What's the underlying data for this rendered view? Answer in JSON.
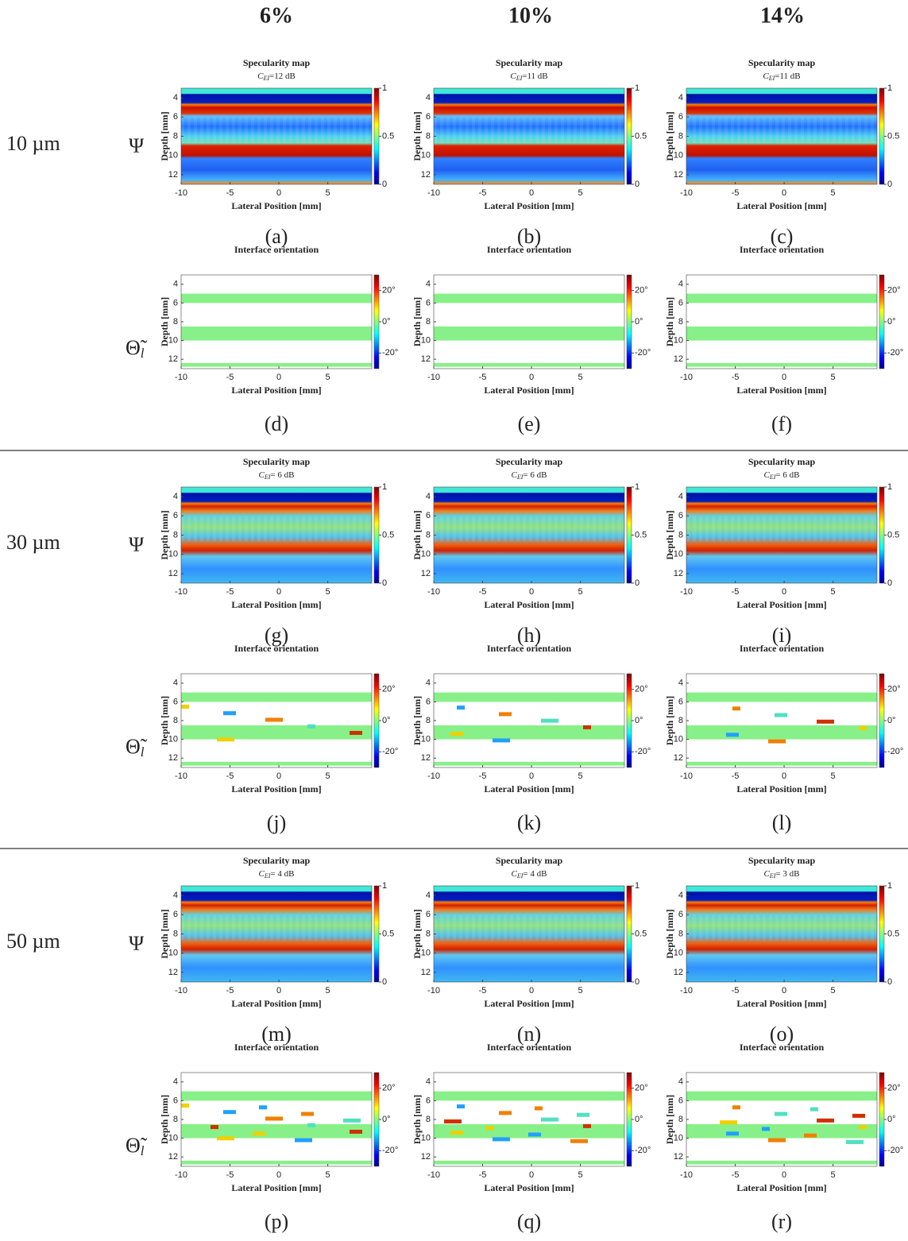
{
  "columns": [
    "6%",
    "10%",
    "14%"
  ],
  "row_symbols": {
    "specularity": "Ψ",
    "orientation": {
      "symbol": "Θ̃",
      "subscript": "l"
    }
  },
  "axes": {
    "x_label": "Lateral Position [mm]",
    "y_label": "Depth [mm]",
    "xlim": [
      -10,
      9.5
    ],
    "xticks": [
      -10,
      -5,
      0,
      5
    ],
    "ylim": [
      3,
      13
    ],
    "yticks": [
      4,
      6,
      8,
      10,
      12
    ]
  },
  "specularity": {
    "title": "Specularity map",
    "metric_symbol": "C",
    "metric_subscript": "EI",
    "colorbar_lim": [
      0,
      1
    ],
    "colorbar_ticks": [
      0,
      0.5,
      1
    ]
  },
  "orientation": {
    "title": "Interface orientation",
    "colorbar_lim": [
      -30,
      30
    ],
    "colorbar_ticks": [
      {
        "value": 20,
        "label": "20°"
      },
      {
        "value": 0,
        "label": "0°"
      },
      {
        "value": -20,
        "label": "-20°"
      }
    ]
  },
  "rows": [
    {
      "label": "10 µm",
      "specularity": [
        {
          "metric": "=12 dB",
          "caption": "(a)"
        },
        {
          "metric": "=11 dB",
          "caption": "(b)"
        },
        {
          "metric": "=11 dB",
          "caption": "(c)"
        }
      ],
      "orientation": [
        {
          "caption": "(d)"
        },
        {
          "caption": "(e)"
        },
        {
          "caption": "(f)"
        }
      ]
    },
    {
      "label": "30 µm",
      "specularity": [
        {
          "metric": "= 6 dB",
          "caption": "(g)"
        },
        {
          "metric": "= 6 dB",
          "caption": "(h)"
        },
        {
          "metric": "= 6 dB",
          "caption": "(i)"
        }
      ],
      "orientation": [
        {
          "caption": "(j)"
        },
        {
          "caption": "(k)"
        },
        {
          "caption": "(l)"
        }
      ]
    },
    {
      "label": "50 µm",
      "specularity": [
        {
          "metric": "= 4 dB",
          "caption": "(m)"
        },
        {
          "metric": "= 4 dB",
          "caption": "(n)"
        },
        {
          "metric": "= 3 dB",
          "caption": "(o)"
        }
      ],
      "orientation": [
        {
          "caption": "(p)"
        },
        {
          "caption": "(q)"
        },
        {
          "caption": "(r)"
        }
      ]
    }
  ]
}
